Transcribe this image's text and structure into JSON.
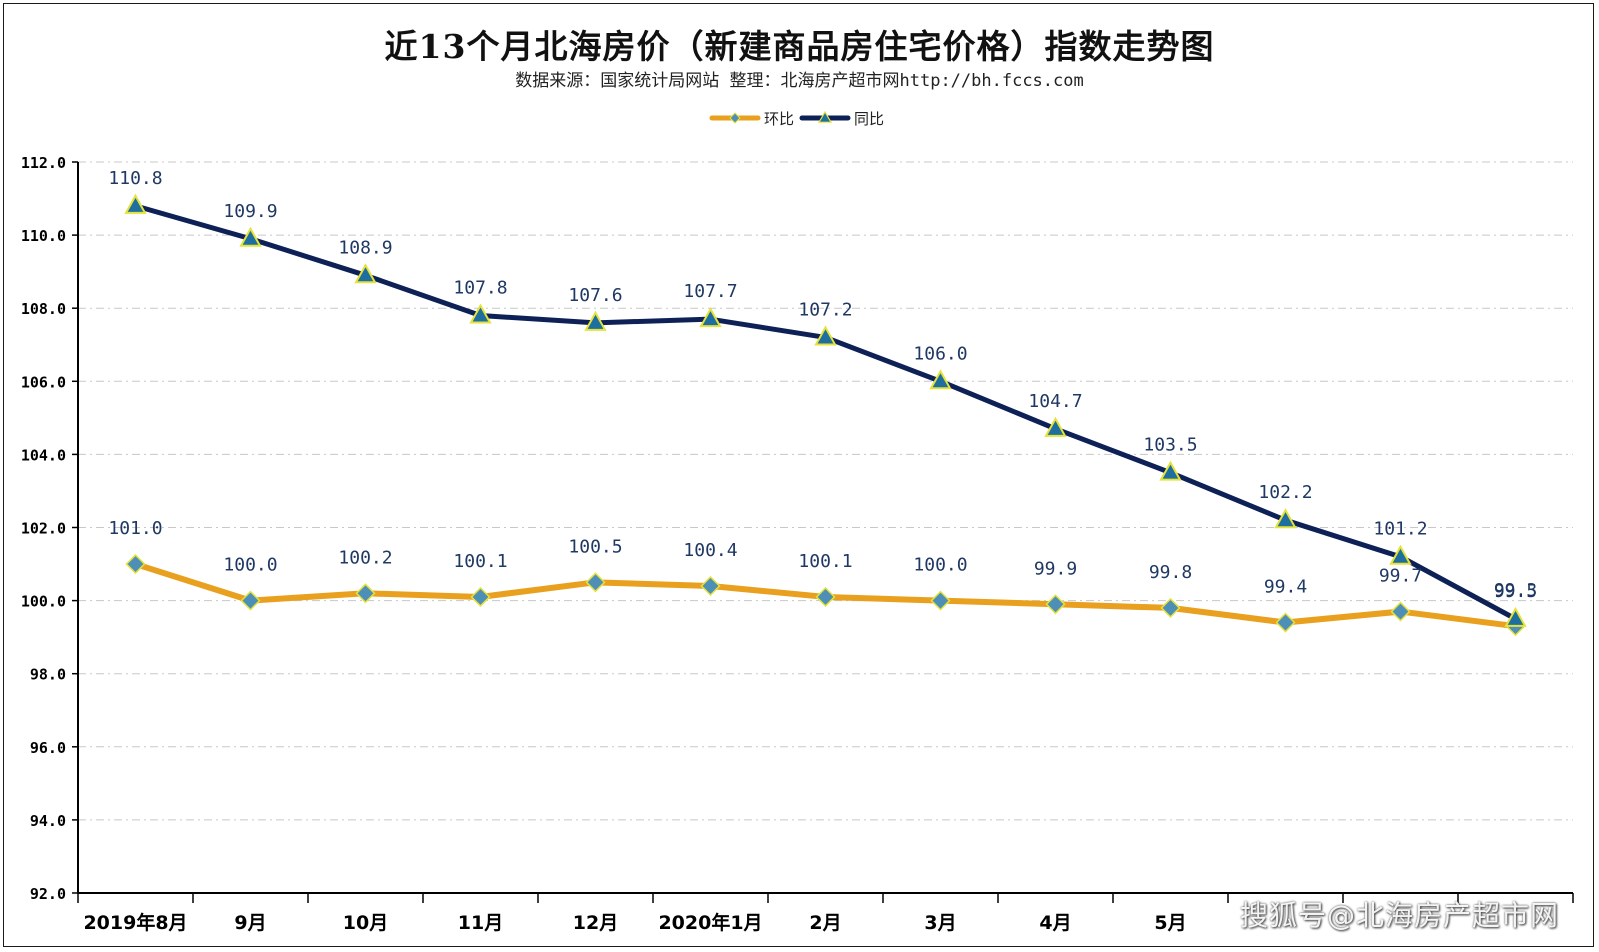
{
  "title": "近13个月北海房价（新建商品房住宅价格）指数走势图",
  "subtitle": "数据来源：国家统计局网站  整理：北海房产超市网http://bh.fccs.com",
  "watermark": "搜狐号@北海房产超市网",
  "colors": {
    "huanbi_line": "#E8A01E",
    "huanbi_marker": "#4E8FB8",
    "tongbi_line": "#0E2157",
    "tongbi_marker": "#1E6FA0",
    "marker_stroke": "#E5E23A",
    "label": "#1F3864",
    "grid": "#C8C8C8",
    "axis": "#000000"
  },
  "chart_data": {
    "type": "line",
    "title": "近13个月北海房价（新建商品房住宅价格）指数走势图",
    "xlabel": "",
    "ylabel": "",
    "ylim": [
      92.0,
      112.0
    ],
    "yticks": [
      "92.0",
      "94.0",
      "96.0",
      "98.0",
      "100.0",
      "102.0",
      "104.0",
      "106.0",
      "108.0",
      "110.0",
      "112.0"
    ],
    "categories": [
      "2019年8月",
      "9月",
      "10月",
      "11月",
      "12月",
      "2020年1月",
      "2月",
      "3月",
      "4月",
      "5月",
      "",
      "",
      ""
    ],
    "legend_position": "top-center",
    "grid": true,
    "series": [
      {
        "name": "环比",
        "marker": "diamond",
        "values": [
          101.0,
          100.0,
          100.2,
          100.1,
          100.5,
          100.4,
          100.1,
          100.0,
          99.9,
          99.8,
          99.4,
          99.7,
          99.3
        ],
        "labels": [
          "101.0",
          "100.0",
          "100.2",
          "100.1",
          "100.5",
          "100.4",
          "100.1",
          "100.0",
          "99.9",
          "99.8",
          "99.4",
          "99.7",
          "99.3"
        ]
      },
      {
        "name": "同比",
        "marker": "triangle",
        "values": [
          110.8,
          109.9,
          108.9,
          107.8,
          107.6,
          107.7,
          107.2,
          106.0,
          104.7,
          103.5,
          102.2,
          101.2,
          99.5
        ],
        "labels": [
          "110.8",
          "109.9",
          "108.9",
          "107.8",
          "107.6",
          "107.7",
          "107.2",
          "106.0",
          "104.7",
          "103.5",
          "102.2",
          "101.2",
          "99.5"
        ]
      }
    ]
  }
}
